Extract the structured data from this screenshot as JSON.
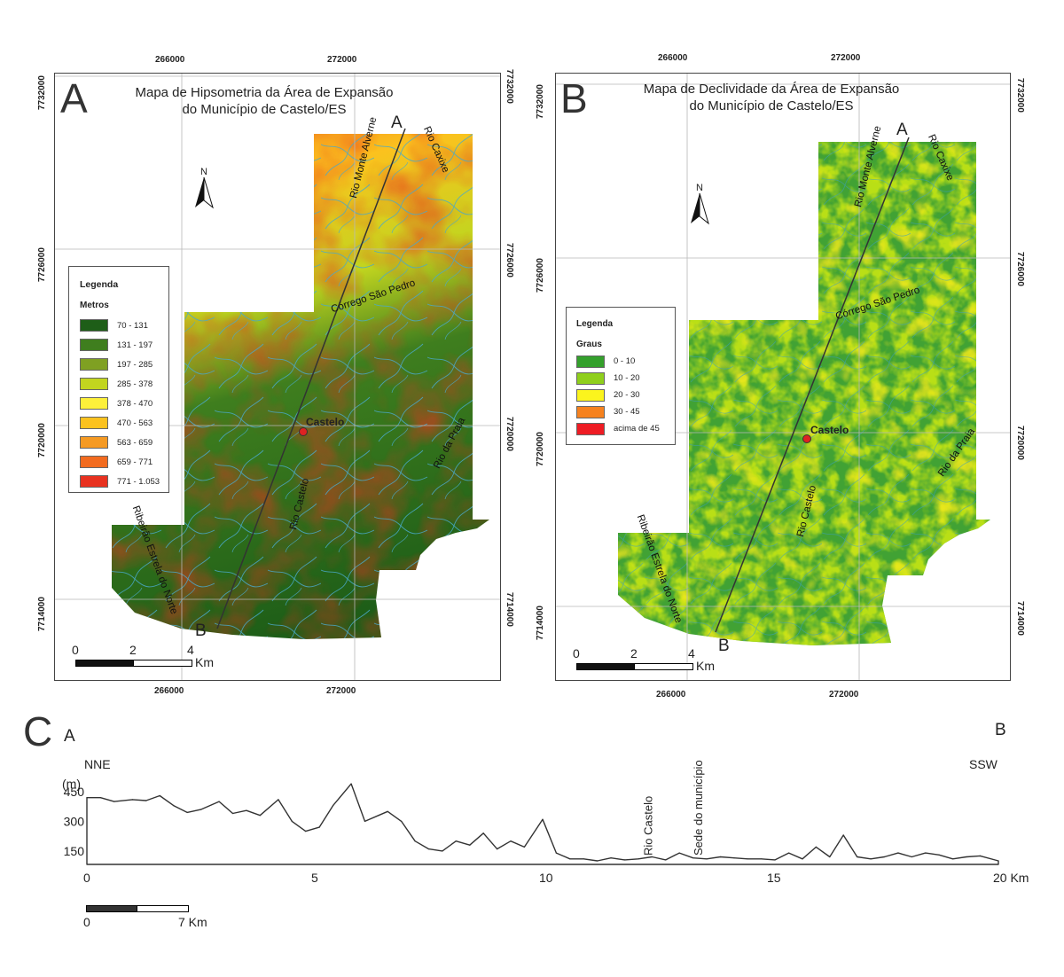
{
  "panel_a": {
    "letter": "A",
    "title_line1": "Mapa de Hipsometria da Área de Expansão",
    "title_line2": "do Município de Castelo/ES",
    "north": "N",
    "legend": {
      "title": "Legenda",
      "subtitle": "Metros",
      "items": [
        {
          "label": "70 - 131",
          "color": "#1e5e18"
        },
        {
          "label": "131 - 197",
          "color": "#3f7e1e"
        },
        {
          "label": "197 - 285",
          "color": "#7fa022"
        },
        {
          "label": "285 - 378",
          "color": "#c2d51f"
        },
        {
          "label": "378 - 470",
          "color": "#fdf03a"
        },
        {
          "label": "470 - 563",
          "color": "#fbc21e"
        },
        {
          "label": "563 - 659",
          "color": "#f59a23"
        },
        {
          "label": "659 - 771",
          "color": "#f26b1f"
        },
        {
          "label": "771 - 1.053",
          "color": "#e83220"
        }
      ]
    },
    "coords_top": [
      "266000",
      "272000"
    ],
    "coords_bottom": [
      "266000",
      "272000"
    ],
    "coords_left": [
      "7732000",
      "7726000",
      "7720000",
      "7714000"
    ],
    "coords_right": [
      "7732000",
      "7726000",
      "7720000",
      "7714000"
    ],
    "rivers": [
      "Rio Monte Alverne",
      "Rio Caxixe",
      "Córrego São Pedro",
      "Rio da Praia",
      "Rio Castelo",
      "Ribeirão Estrela do Norte"
    ],
    "city": "Castelo",
    "profile_start": "A",
    "profile_end": "B",
    "scale": [
      "0",
      "2",
      "4",
      "Km"
    ]
  },
  "panel_b": {
    "letter": "B",
    "title_line1": "Mapa de Declividade da Área de Expansão",
    "title_line2": "do Município de Castelo/ES",
    "north": "N",
    "legend": {
      "title": "Legenda",
      "subtitle": "Graus",
      "items": [
        {
          "label": "0 - 10",
          "color": "#34a02c"
        },
        {
          "label": "10 - 20",
          "color": "#8fcf1c"
        },
        {
          "label": "20 - 30",
          "color": "#fbf41d"
        },
        {
          "label": "30 - 45",
          "color": "#f6821f"
        },
        {
          "label": "acima de 45",
          "color": "#ee1c24"
        }
      ]
    },
    "coords_top": [
      "266000",
      "272000"
    ],
    "coords_bottom": [
      "266000",
      "272000"
    ],
    "coords_left": [
      "7732000",
      "7726000",
      "7720000",
      "7714000"
    ],
    "coords_right": [
      "7732000",
      "7726000",
      "7720000",
      "7714000"
    ],
    "rivers": [
      "Rio Monte Alverne",
      "Rio Caxixe",
      "Córrego São Pedro",
      "Rio da Praia",
      "Rio Castelo",
      "Ribeirão Estrela do Norte"
    ],
    "city": "Castelo",
    "profile_start": "A",
    "profile_end": "B",
    "scale": [
      "0",
      "2",
      "4",
      "Km"
    ]
  },
  "profile": {
    "letter": "C",
    "start": "A",
    "end": "B",
    "dir_start": "NNE",
    "dir_end": "SSW",
    "unit": "(m)",
    "y_ticks": [
      "450",
      "300",
      "150"
    ],
    "x_ticks": [
      "0",
      "5",
      "10",
      "15",
      "20 Km"
    ],
    "annotations": [
      "Rio Castelo",
      "Sede do município"
    ],
    "scale": [
      "0",
      "7 Km"
    ],
    "chart_data": {
      "type": "line",
      "ylabel": "(m)",
      "x_unit": "Km",
      "xlim": [
        0,
        20
      ],
      "x": [
        0,
        0.3,
        0.6,
        1,
        1.3,
        1.6,
        1.9,
        2.2,
        2.5,
        2.9,
        3.2,
        3.5,
        3.8,
        4.2,
        4.5,
        4.8,
        5.1,
        5.4,
        5.8,
        6.1,
        6.4,
        6.6,
        6.9,
        7.2,
        7.5,
        7.8,
        8.1,
        8.4,
        8.7,
        9,
        9.3,
        9.6,
        10,
        10.3,
        10.6,
        10.9,
        11.2,
        11.5,
        11.8,
        12.1,
        12.4,
        12.7,
        13,
        13.3,
        13.6,
        13.9,
        14.2,
        14.5,
        14.8,
        15.1,
        15.4,
        15.7,
        16,
        16.3,
        16.6,
        16.9,
        17.2,
        17.5,
        17.8,
        18.1,
        18.4,
        18.7,
        19,
        19.3,
        19.6,
        20
      ],
      "y": [
        420,
        420,
        400,
        410,
        405,
        430,
        380,
        345,
        360,
        400,
        340,
        355,
        330,
        410,
        300,
        250,
        270,
        380,
        490,
        300,
        330,
        350,
        300,
        200,
        160,
        150,
        200,
        180,
        240,
        160,
        200,
        170,
        310,
        140,
        110,
        110,
        100,
        115,
        105,
        110,
        120,
        105,
        140,
        115,
        110,
        120,
        115,
        110,
        110,
        105,
        140,
        110,
        170,
        120,
        230,
        120,
        110,
        120,
        140,
        120,
        140,
        130,
        110,
        120,
        125,
        100
      ]
    }
  }
}
